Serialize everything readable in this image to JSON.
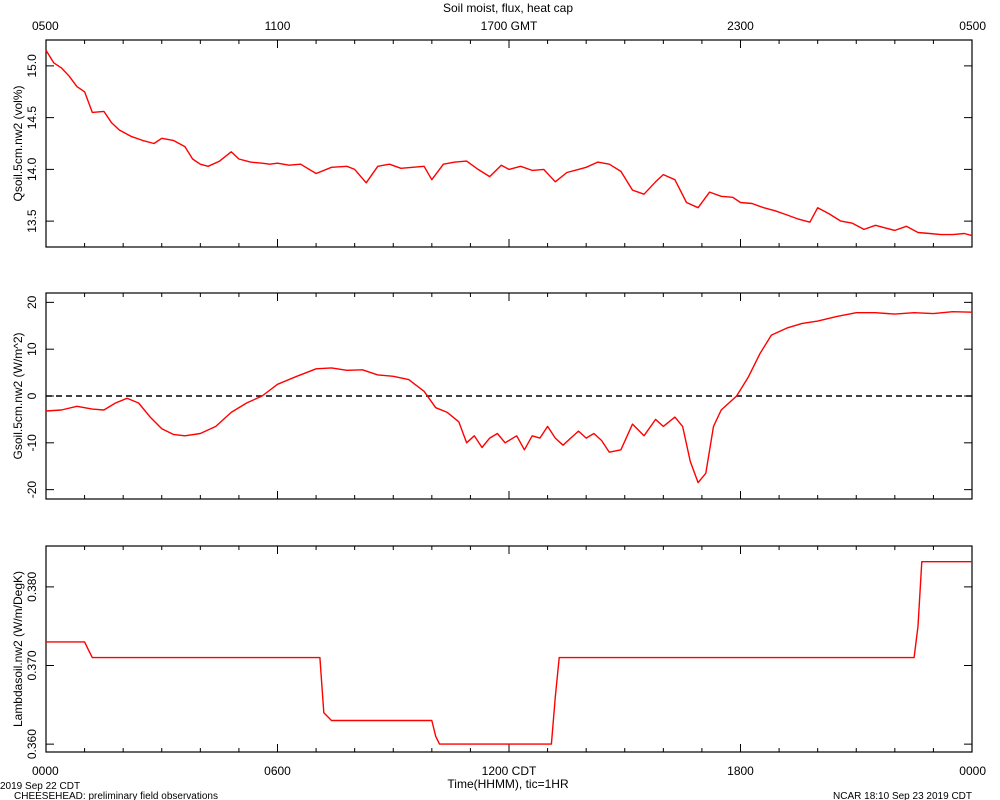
{
  "title": "Soil moist, flux, heat cap",
  "top_axis": {
    "label": "1700 GMT",
    "ticks": [
      {
        "hour": 0,
        "label": "0500"
      },
      {
        "hour": 6,
        "label": "1100"
      },
      {
        "hour": 12,
        "label": "1700 GMT"
      },
      {
        "hour": 18,
        "label": "2300"
      },
      {
        "hour": 24,
        "label": "0500"
      }
    ]
  },
  "bottom_axis": {
    "label": "Time(HHMM), tic=1HR",
    "ticks": [
      {
        "hour": 0,
        "label": "0000"
      },
      {
        "hour": 6,
        "label": "0600"
      },
      {
        "hour": 12,
        "label": "1200 CDT"
      },
      {
        "hour": 18,
        "label": "1800"
      },
      {
        "hour": 24,
        "label": "0000"
      }
    ]
  },
  "footer": {
    "date_label": "2019 Sep 22 CDT",
    "project_label": "CHEESEHEAD: preliminary field observations",
    "timestamp_label": "NCAR 18:10 Sep 23 2019 CDT"
  },
  "chart_data": [
    {
      "type": "line",
      "ylabel": "Qsoil.5cm.nw2 (vol%)",
      "ylim": [
        13.25,
        15.25
      ],
      "yticks": [
        13.5,
        14.0,
        14.5,
        15.0
      ],
      "ytick_labels": [
        "13.5",
        "14.0",
        "14.5",
        "15.0"
      ],
      "color": "#ff0000",
      "x": [
        0,
        0.2,
        0.4,
        0.6,
        0.8,
        1.0,
        1.2,
        1.5,
        1.7,
        1.9,
        2.2,
        2.5,
        2.8,
        3.0,
        3.3,
        3.6,
        3.8,
        4.0,
        4.2,
        4.5,
        4.8,
        5.0,
        5.3,
        5.6,
        5.8,
        6.0,
        6.3,
        6.6,
        7.0,
        7.4,
        7.8,
        8.0,
        8.3,
        8.6,
        8.9,
        9.2,
        9.5,
        9.8,
        10.0,
        10.3,
        10.6,
        10.9,
        11.2,
        11.5,
        11.8,
        12.0,
        12.3,
        12.6,
        12.9,
        13.2,
        13.5,
        13.8,
        14.0,
        14.3,
        14.6,
        14.9,
        15.2,
        15.5,
        15.8,
        16.0,
        16.3,
        16.6,
        16.9,
        17.2,
        17.5,
        17.8,
        18.0,
        18.3,
        18.6,
        18.9,
        19.2,
        19.5,
        19.8,
        20.0,
        20.3,
        20.6,
        20.9,
        21.2,
        21.5,
        21.8,
        22.0,
        22.3,
        22.6,
        22.9,
        23.2,
        23.5,
        23.8,
        24.0
      ],
      "y": [
        15.15,
        15.03,
        14.98,
        14.9,
        14.8,
        14.75,
        14.55,
        14.56,
        14.45,
        14.38,
        14.32,
        14.28,
        14.25,
        14.3,
        14.28,
        14.22,
        14.1,
        14.05,
        14.03,
        14.08,
        14.17,
        14.1,
        14.07,
        14.06,
        14.05,
        14.06,
        14.04,
        14.05,
        13.96,
        14.02,
        14.03,
        14.0,
        13.87,
        14.03,
        14.05,
        14.01,
        14.02,
        14.03,
        13.9,
        14.05,
        14.07,
        14.08,
        14.0,
        13.93,
        14.04,
        14.0,
        14.03,
        13.99,
        14.0,
        13.88,
        13.97,
        14.0,
        14.02,
        14.07,
        14.05,
        13.98,
        13.8,
        13.76,
        13.88,
        13.95,
        13.9,
        13.68,
        13.63,
        13.78,
        13.74,
        13.73,
        13.68,
        13.67,
        13.63,
        13.6,
        13.56,
        13.52,
        13.49,
        13.63,
        13.57,
        13.5,
        13.48,
        13.42,
        13.46,
        13.43,
        13.41,
        13.45,
        13.39,
        13.38,
        13.37,
        13.37,
        13.38,
        13.36
      ]
    },
    {
      "type": "line",
      "ylabel": "Gsoil.5cm.nw2 (W/m^2)",
      "ylim": [
        -22,
        22
      ],
      "yticks": [
        -20,
        -10,
        0,
        10,
        20
      ],
      "ytick_labels": [
        "-20",
        "-10",
        "0",
        "10",
        "20"
      ],
      "zero_line": "dashed",
      "color": "#ff0000",
      "x": [
        0,
        0.4,
        0.8,
        1.2,
        1.5,
        1.8,
        2.1,
        2.4,
        2.7,
        3.0,
        3.3,
        3.6,
        4.0,
        4.4,
        4.8,
        5.2,
        5.6,
        6.0,
        6.5,
        7.0,
        7.4,
        7.8,
        8.2,
        8.6,
        9.0,
        9.4,
        9.8,
        10.1,
        10.4,
        10.7,
        10.9,
        11.1,
        11.3,
        11.5,
        11.7,
        11.9,
        12.2,
        12.4,
        12.6,
        12.8,
        13.0,
        13.2,
        13.4,
        13.6,
        13.8,
        14.0,
        14.2,
        14.4,
        14.6,
        14.9,
        15.2,
        15.5,
        15.8,
        16.0,
        16.3,
        16.5,
        16.7,
        16.9,
        17.1,
        17.3,
        17.5,
        17.7,
        17.9,
        18.2,
        18.5,
        18.8,
        19.2,
        19.6,
        20.0,
        20.5,
        21.0,
        21.5,
        22.0,
        22.5,
        23.0,
        23.5,
        24.0
      ],
      "y": [
        -3.2,
        -3.0,
        -2.2,
        -2.8,
        -3.0,
        -1.5,
        -0.5,
        -1.5,
        -4.5,
        -7.0,
        -8.2,
        -8.5,
        -8.0,
        -6.5,
        -3.5,
        -1.5,
        0.0,
        2.5,
        4.2,
        5.8,
        6.0,
        5.5,
        5.6,
        4.5,
        4.2,
        3.5,
        1.0,
        -2.5,
        -3.5,
        -5.5,
        -10.0,
        -8.5,
        -11.0,
        -9.0,
        -8.0,
        -10.0,
        -8.5,
        -11.5,
        -8.5,
        -9.0,
        -6.5,
        -9.0,
        -10.5,
        -9.0,
        -7.5,
        -9.0,
        -8.0,
        -9.5,
        -12.0,
        -11.5,
        -6.0,
        -8.5,
        -5.0,
        -6.5,
        -4.5,
        -6.5,
        -14.0,
        -18.5,
        -16.5,
        -6.5,
        -3.0,
        -1.5,
        0.0,
        4.0,
        9.0,
        13.0,
        14.5,
        15.5,
        16.0,
        17.0,
        17.8,
        17.8,
        17.5,
        17.8,
        17.6,
        18.0,
        17.9
      ]
    },
    {
      "type": "line",
      "ylabel": "Lambdasoil.nw2 (W/m/DegK)",
      "ylim": [
        0.359,
        0.3852
      ],
      "yticks": [
        0.36,
        0.37,
        0.38
      ],
      "ytick_labels": [
        "0.360",
        "0.370",
        "0.380"
      ],
      "color": "#ff0000",
      "x": [
        0,
        1.0,
        1.1,
        1.2,
        7.1,
        7.2,
        7.4,
        10.0,
        10.1,
        10.2,
        13.1,
        13.2,
        13.3,
        22.5,
        22.6,
        22.7,
        24.0
      ],
      "y": [
        0.373,
        0.373,
        0.372,
        0.371,
        0.371,
        0.364,
        0.363,
        0.363,
        0.361,
        0.36,
        0.36,
        0.366,
        0.371,
        0.371,
        0.375,
        0.3832,
        0.3832
      ]
    }
  ]
}
